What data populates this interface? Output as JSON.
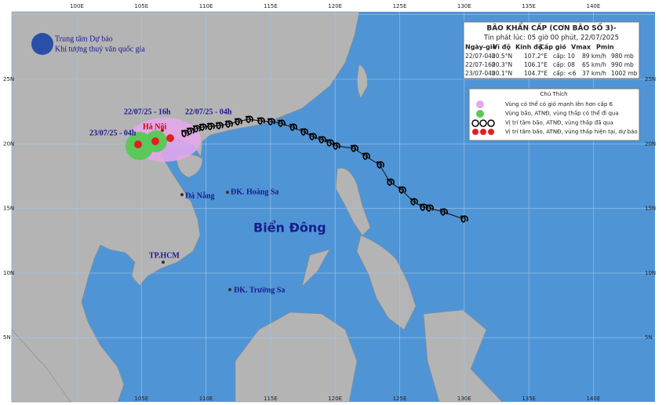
{
  "logo": {
    "line1": "Trung tâm Dự báo",
    "line2": "Khí tượng thuỷ văn quốc gia"
  },
  "lon_top": [
    "100E",
    "105E",
    "110E",
    "115E",
    "120E",
    "125E",
    "130E",
    "135E",
    "140E"
  ],
  "lon_bottom": [
    "105E",
    "110E",
    "115E",
    "120E",
    "125E",
    "130E",
    "135E",
    "140E"
  ],
  "lat_left": [
    "25N",
    "20N",
    "15N",
    "10N",
    "5N"
  ],
  "lat_right": [
    "25N",
    "20N",
    "15N",
    "10N",
    "5N"
  ],
  "info": {
    "title": "BÃO KHẨN CẤP (CƠN BÃO SỐ 3)-",
    "issued": "Tin phát lúc: 05 giờ 00 phút, 22/07/2025",
    "header": [
      "Ngày-giờ",
      "Vĩ độ",
      "Kinh độ",
      "Cấp gió",
      "Vmax",
      "Pmin"
    ],
    "rows": [
      [
        "22/07-04h",
        "20.5°N",
        "107.2°E",
        "cấp: 10",
        "89 km/h",
        "980 mb"
      ],
      [
        "22/07-16h",
        "20.3°N",
        "106.1°E",
        "cấp: 08",
        "65 km/h",
        "990 mb"
      ],
      [
        "23/07-04h",
        "20.1°N",
        "104.7°E",
        "cấp: <6",
        "37 km/h",
        "1002 mb"
      ]
    ]
  },
  "legend": {
    "title": "Chú Thích",
    "items": [
      "Vùng có thể có gió mạnh lên hơn cấp 6",
      "Vùng bão, ATNĐ, vùng thấp có thể đi qua",
      "Vị trí tâm bão, ATNĐ, vùng thấp đã qua",
      "Vị trí tâm bão, ATNĐ, vùng thấp hiện tại, dự báo"
    ]
  },
  "map_labels": {
    "t16": "22/07/25 - 16h",
    "t04": "22/07/25 - 04h",
    "t23": "23/07/25 - 04h",
    "hanoi": "Hà Nội",
    "danang": "Đà Nẵng",
    "hoangsa": "ĐK. Hoàng Sa",
    "biendong": "Biển Đông",
    "hcm": "TP.HCM",
    "truongsa": "ĐK. Trường Sa"
  }
}
